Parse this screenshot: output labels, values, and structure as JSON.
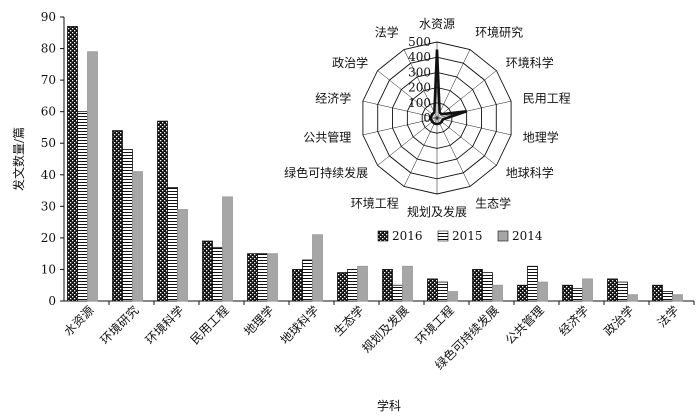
{
  "chart_data": [
    {
      "type": "bar",
      "xlabel": "学科",
      "ylabel": "发文数量/篇",
      "ylim": [
        0,
        90
      ],
      "yticks": [
        0,
        10,
        20,
        30,
        40,
        50,
        60,
        70,
        80,
        90
      ],
      "grid": false,
      "legend_position": "bottom-center",
      "categories": [
        "水资源",
        "环境研究",
        "环境科学",
        "民用工程",
        "地理学",
        "地球科学",
        "生态学",
        "规划及发展",
        "环境工程",
        "绿色可持续发展",
        "公共管理",
        "经济学",
        "政治学",
        "法学"
      ],
      "series": [
        {
          "name": "2016",
          "color": "#222222",
          "values": [
            87,
            54,
            57,
            19,
            15,
            10,
            9,
            10,
            7,
            10,
            5,
            5,
            7,
            5
          ]
        },
        {
          "name": "2015",
          "color": "#ffffff",
          "values": [
            60,
            48,
            36,
            17,
            15,
            13,
            10,
            5,
            6,
            9,
            11,
            4,
            6,
            3
          ]
        },
        {
          "name": "2014",
          "color": "#a6a6a6",
          "values": [
            79,
            41,
            29,
            33,
            15,
            21,
            11,
            11,
            3,
            5,
            6,
            7,
            2,
            2
          ]
        }
      ]
    },
    {
      "type": "radar",
      "axes": [
        "水资源",
        "环境研究",
        "环境科学",
        "民用工程",
        "地理学",
        "地球科学",
        "生态学",
        "规划及发展",
        "环境工程",
        "绿色可持续发展",
        "公共管理",
        "经济学",
        "政治学",
        "法学"
      ],
      "rlim": [
        0,
        500
      ],
      "rticks": [
        0,
        100,
        200,
        300,
        400,
        500
      ],
      "series": [
        {
          "values": [
            450,
            40,
            40,
            200,
            40,
            40,
            40,
            40,
            40,
            40,
            40,
            40,
            40,
            40
          ]
        }
      ]
    }
  ]
}
